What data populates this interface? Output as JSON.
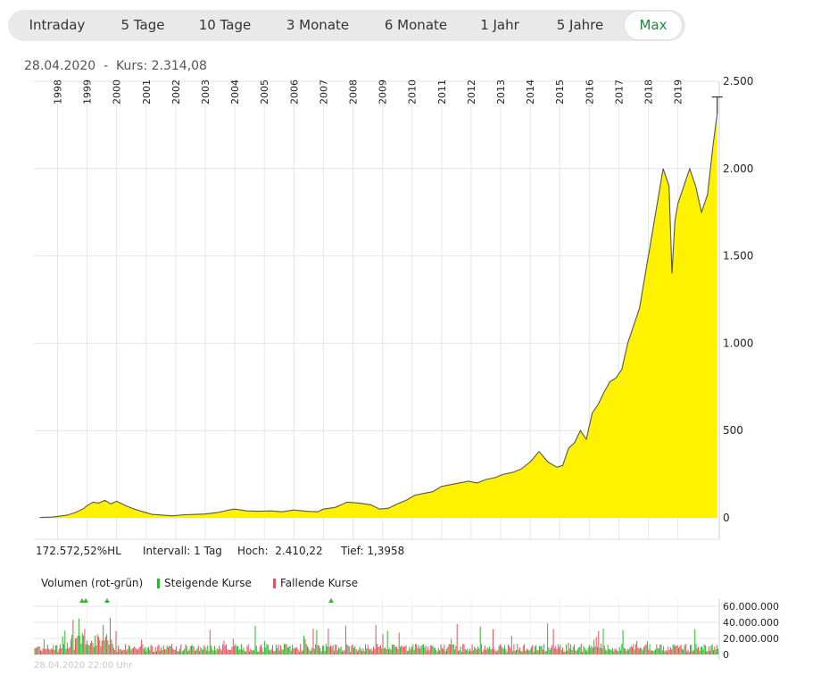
{
  "range_tabs": [
    {
      "label": "Intraday",
      "active": false
    },
    {
      "label": "5 Tage",
      "active": false
    },
    {
      "label": "10 Tage",
      "active": false
    },
    {
      "label": "3 Monate",
      "active": false
    },
    {
      "label": "6 Monate",
      "active": false
    },
    {
      "label": "1 Jahr",
      "active": false
    },
    {
      "label": "5 Jahre",
      "active": false
    },
    {
      "label": "Max",
      "active": true
    }
  ],
  "quote": {
    "date": "28.04.2020",
    "separator": "-",
    "price_label": "Kurs: 2.314,08"
  },
  "stats": {
    "performance": "172.572,52%HL",
    "interval": "Intervall: 1 Tag",
    "high": "Hoch:  2.410,22",
    "low": "Tief: 1,3958"
  },
  "volume_legend": {
    "title": "Volumen (rot-grün)",
    "rising": "Steigende Kurse",
    "falling": "Fallende Kurse",
    "rising_color": "#2db82d",
    "falling_color": "#e8505b"
  },
  "volume_timestamp": "28.04.2020 22:00 Uhr",
  "colors": {
    "area_fill": "#fff200",
    "price_line": "#555555",
    "grid": "#e6e6e6",
    "accent": "#1e8a3c"
  },
  "chart_data": [
    {
      "type": "area",
      "title": "",
      "xlabel": "",
      "ylabel": "",
      "x_tick_labels": [
        "1998",
        "1999",
        "2000",
        "2001",
        "2002",
        "2003",
        "2004",
        "2005",
        "2006",
        "2007",
        "2008",
        "2009",
        "2010",
        "2011",
        "2012",
        "2013",
        "2014",
        "2015",
        "2016",
        "2017",
        "2018",
        "2019"
      ],
      "y_tick_labels": [
        "0",
        "500",
        "1.000",
        "1.500",
        "2.000",
        "2.500"
      ],
      "y_ticks": [
        0,
        500,
        1000,
        1500,
        2000,
        2500
      ],
      "ylim": [
        0,
        2500
      ],
      "xlim": [
        1997.2,
        2020.4
      ],
      "series": [
        {
          "x": [
            1997.4,
            1997.8,
            1998.0,
            1998.3,
            1998.6,
            1998.9,
            1999.0,
            1999.2,
            1999.4,
            1999.6,
            1999.8,
            2000.0,
            2000.3,
            2000.6,
            2000.9,
            2001.2,
            2001.6,
            2001.9,
            2002.3,
            2002.7,
            2003.0,
            2003.4,
            2003.8,
            2004.0,
            2004.4,
            2004.8,
            2005.2,
            2005.6,
            2006.0,
            2006.4,
            2006.8,
            2007.0,
            2007.4,
            2007.8,
            2008.2,
            2008.6,
            2008.9,
            2009.2,
            2009.5,
            2009.8,
            2010.1,
            2010.4,
            2010.7,
            2011.0,
            2011.3,
            2011.6,
            2011.9,
            2012.2,
            2012.5,
            2012.8,
            2013.1,
            2013.4,
            2013.7,
            2014.0,
            2014.3,
            2014.6,
            2014.9,
            2015.1,
            2015.3,
            2015.5,
            2015.7,
            2015.9,
            2016.1,
            2016.3,
            2016.5,
            2016.7,
            2016.9,
            2017.1,
            2017.3,
            2017.5,
            2017.7,
            2017.9,
            2018.1,
            2018.3,
            2018.5,
            2018.7,
            2018.8,
            2018.9,
            2019.0,
            2019.2,
            2019.4,
            2019.6,
            2019.8,
            2020.0,
            2020.2,
            2020.33
          ],
          "y": [
            2,
            4,
            8,
            15,
            30,
            55,
            70,
            90,
            85,
            100,
            80,
            95,
            70,
            50,
            35,
            20,
            15,
            12,
            18,
            20,
            22,
            30,
            45,
            50,
            40,
            38,
            40,
            35,
            45,
            38,
            35,
            50,
            60,
            90,
            85,
            75,
            50,
            55,
            80,
            100,
            130,
            140,
            150,
            180,
            190,
            200,
            210,
            200,
            220,
            230,
            250,
            260,
            280,
            320,
            380,
            320,
            290,
            300,
            400,
            430,
            500,
            450,
            600,
            650,
            720,
            780,
            800,
            850,
            1000,
            1100,
            1200,
            1400,
            1600,
            1800,
            2000,
            1900,
            1400,
            1700,
            1800,
            1900,
            2000,
            1900,
            1750,
            1850,
            2150,
            2314
          ]
        }
      ],
      "annotations": [
        "Kurs: 2.314,08",
        "Hoch: 2.410,22"
      ]
    },
    {
      "type": "bar",
      "title": "Volumen (rot-grün)",
      "y_tick_labels": [
        "0",
        "20.000.000",
        "40.000.000",
        "60.000.000"
      ],
      "y_ticks": [
        0,
        20000000,
        40000000,
        60000000
      ],
      "ylim": [
        0,
        70000000
      ],
      "legend": [
        "Steigende Kurse",
        "Fallende Kurse"
      ]
    }
  ]
}
